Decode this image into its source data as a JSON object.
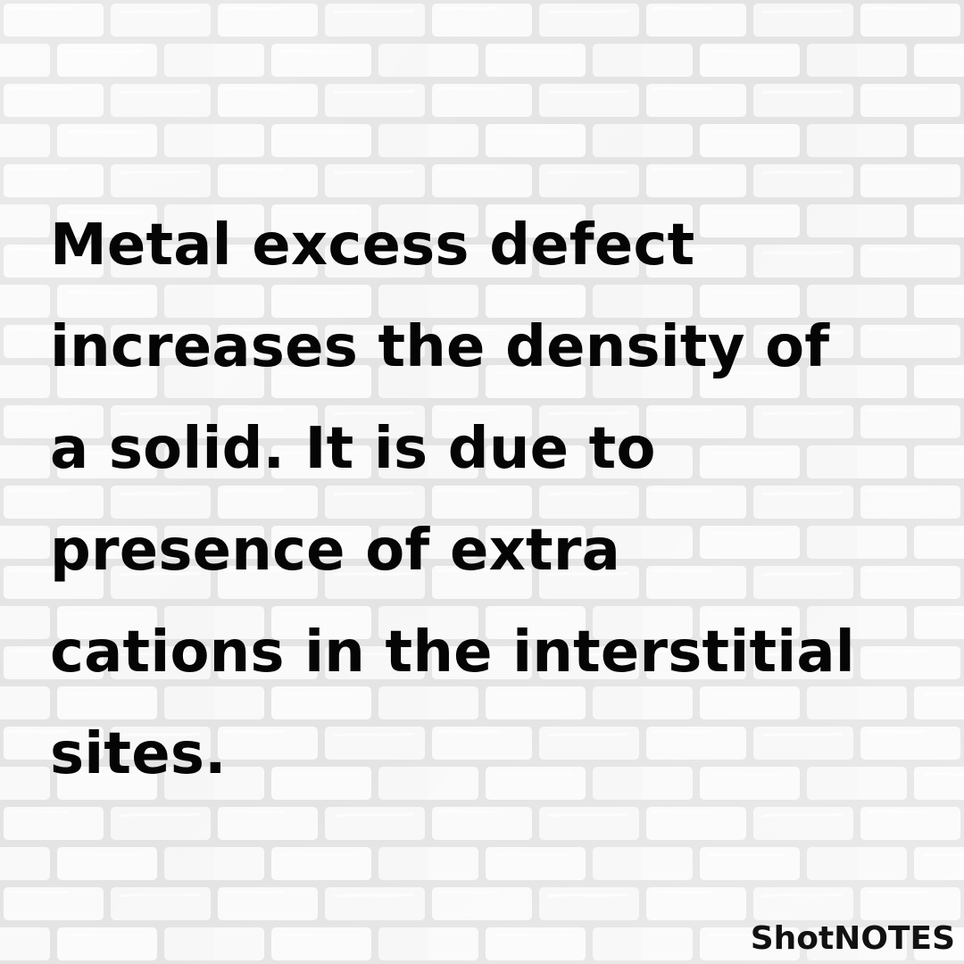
{
  "post": {
    "text": "Metal excess defect\nincreases the density of\na solid. It is due to\npresence of extra\ncations in the interstitial\nsites."
  },
  "brand": {
    "label": "ShotNOTES"
  },
  "colors": {
    "text": "#050505",
    "brand": "#111111",
    "background": "#f7f7f7",
    "mortar": "#dddddd"
  },
  "background": {
    "texture": "white-brick-wall"
  }
}
